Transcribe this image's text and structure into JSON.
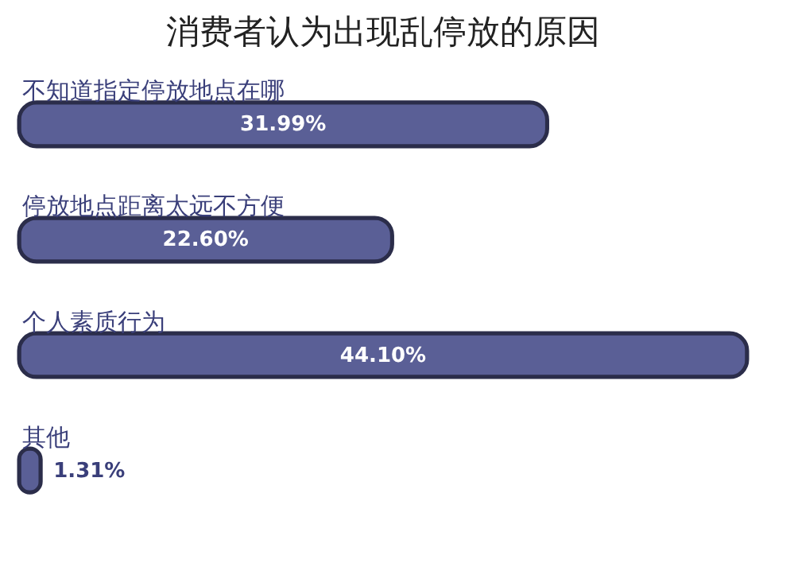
{
  "chart_data": {
    "type": "bar",
    "orientation": "horizontal",
    "title": "消费者认为出现乱停放的原因",
    "categories": [
      "不知道指定停放地点在哪",
      "停放地点距离太远不方便",
      "个人素质行为",
      "其他"
    ],
    "values": [
      31.99,
      22.6,
      44.1,
      1.31
    ],
    "value_labels": [
      "31.99%",
      "22.60%",
      "44.10%",
      "1.31%"
    ],
    "color": "#5a5f96"
  }
}
